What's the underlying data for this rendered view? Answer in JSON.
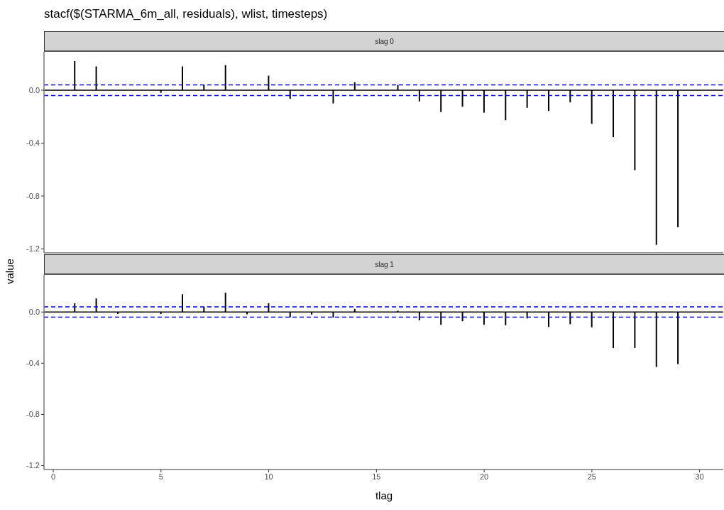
{
  "chart_data": [
    {
      "type": "bar",
      "title": "stacf($(STARMA_6m_all, residuals), wlist, timesteps)",
      "subtitle": "slag 0",
      "ylabel": "value",
      "tick_labels": "y",
      "grid": false,
      "legend": false,
      "x": [
        1,
        2,
        3,
        4,
        5,
        6,
        7,
        8,
        9,
        10,
        11,
        12,
        13,
        14,
        15,
        16,
        17,
        18,
        19,
        20,
        21,
        22,
        23,
        24,
        25,
        26,
        27,
        28,
        29
      ],
      "series": [
        {
          "color": "#000000",
          "values": [
            0.22,
            0.18,
            null,
            null,
            -0.02,
            0.18,
            0.04,
            0.19,
            null,
            0.11,
            -0.065,
            0,
            -0.1,
            0.06,
            0,
            0.04,
            -0.085,
            -0.165,
            -0.125,
            -0.17,
            -0.227,
            -0.133,
            -0.157,
            -0.092,
            -0.254,
            -0.355,
            -0.605,
            -1.169,
            -1.036
          ]
        }
      ],
      "xlim": [
        -0.43,
        31.1
      ],
      "ylim": [
        -1.23,
        0.29
      ],
      "yticks": [
        -1.2,
        -0.8,
        -0.4,
        {
          "value": 0,
          "label": "0.0"
        }
      ],
      "ref_lines": [
        {
          "axis": "y",
          "value": 0,
          "color": "#000000",
          "line_style": "solid"
        },
        {
          "axis": "y",
          "value": 0.04,
          "color": "#0000ff",
          "line_style": "dashed"
        },
        {
          "axis": "y",
          "value": -0.04,
          "color": "#0000ff",
          "line_style": "dashed"
        }
      ]
    },
    {
      "type": "bar",
      "title": "slag 1",
      "xlabel": "tlag",
      "grid": false,
      "legend": false,
      "x": [
        1,
        2,
        3,
        4,
        5,
        6,
        7,
        8,
        9,
        10,
        11,
        12,
        13,
        14,
        15,
        16,
        17,
        18,
        19,
        20,
        21,
        22,
        23,
        24,
        25,
        26,
        27,
        28,
        29
      ],
      "series": [
        {
          "color": "#000000",
          "values": [
            0.068,
            0.106,
            -0.015,
            null,
            -0.016,
            0.139,
            0.04,
            0.151,
            -0.018,
            0.068,
            -0.041,
            -0.02,
            -0.043,
            0.025,
            0,
            0.01,
            -0.065,
            -0.1,
            -0.072,
            -0.099,
            -0.103,
            -0.05,
            -0.117,
            -0.095,
            -0.119,
            -0.281,
            -0.281,
            -0.429,
            -0.407
          ]
        }
      ],
      "xlim": [
        -0.43,
        31.1
      ],
      "xticks": [
        0,
        5,
        10,
        15,
        20,
        25,
        30
      ],
      "ylim": [
        -1.23,
        0.29
      ],
      "yticks": [
        -1.2,
        -0.8,
        -0.4,
        {
          "value": 0,
          "label": "0.0"
        }
      ],
      "ref_lines": [
        {
          "axis": "y",
          "value": 0,
          "color": "#000000",
          "line_style": "solid"
        },
        {
          "axis": "y",
          "value": 0.04,
          "color": "#0000ff",
          "line_style": "dashed"
        },
        {
          "axis": "y",
          "value": -0.04,
          "color": "#0000ff",
          "line_style": "dashed"
        }
      ]
    }
  ]
}
